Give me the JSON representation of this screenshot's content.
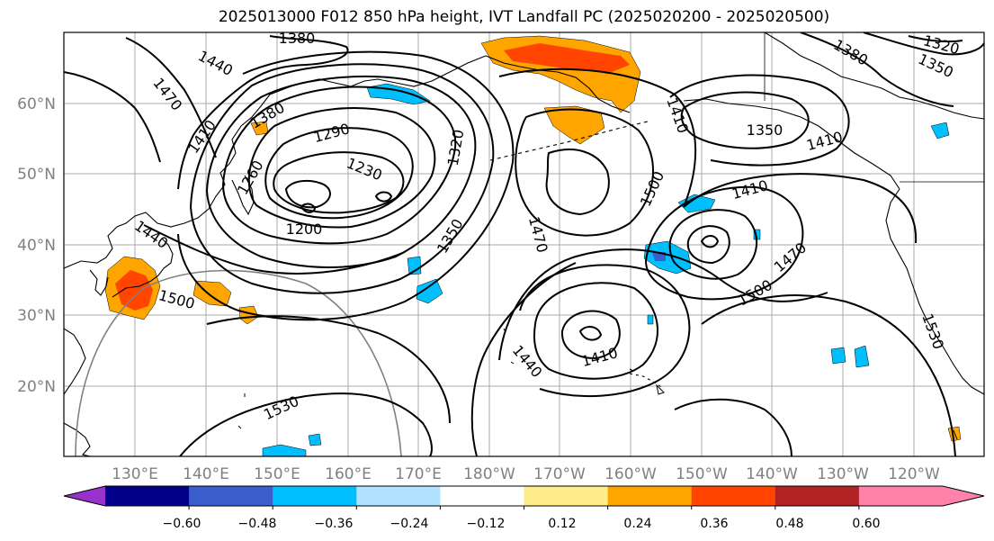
{
  "title": "2025013000 F012 850 hPa height, IVT Landfall PC (2025020200 - 2025020500)",
  "lat_ticks": [
    "20°N",
    "30°N",
    "40°N",
    "50°N",
    "60°N"
  ],
  "lon_ticks": [
    "130°E",
    "140°E",
    "150°E",
    "160°E",
    "170°E",
    "180°W",
    "170°W",
    "160°W",
    "150°W",
    "140°W",
    "130°W",
    "120°W"
  ],
  "contour_labels": [
    "1380",
    "1440",
    "1470",
    "1380",
    "1290",
    "1410",
    "1230",
    "1260",
    "1320",
    "1200",
    "1350",
    "1440",
    "1500",
    "1470",
    "1410",
    "1350",
    "1410",
    "1500",
    "1500",
    "1470",
    "1440",
    "1410",
    "1530",
    "1530",
    "1380",
    "1320",
    "1350"
  ],
  "colorbar": {
    "ticks": [
      "−0.60",
      "−0.48",
      "−0.36",
      "−0.24",
      "−0.12",
      "0.12",
      "0.24",
      "0.36",
      "0.48",
      "0.60"
    ],
    "colors": [
      "#9932cc",
      "#00008b",
      "#3a5fcd",
      "#00bfff",
      "#b0e2ff",
      "#ffffff",
      "#ffec8b",
      "#ffa500",
      "#ff4500",
      "#b22222",
      "#ff82ab",
      "#ff82ab"
    ]
  }
}
